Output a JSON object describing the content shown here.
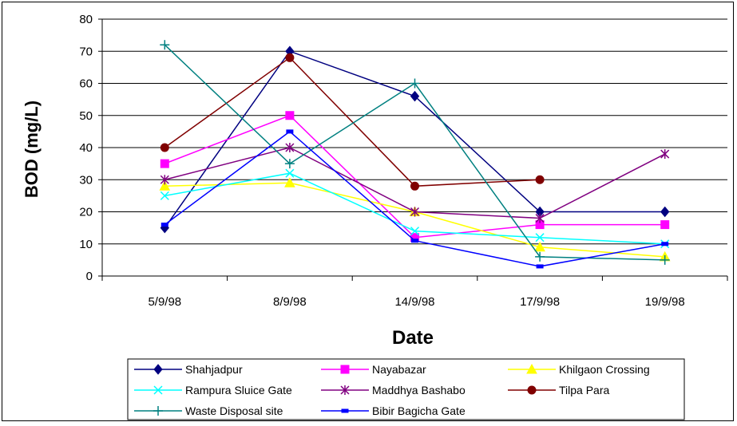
{
  "chart_data": {
    "type": "line",
    "title": "",
    "xlabel": "Date",
    "ylabel": "BOD (mg/L)",
    "categories": [
      "5/9/98",
      "8/9/98",
      "14/9/98",
      "17/9/98",
      "19/9/98"
    ],
    "ylim": [
      0,
      80
    ],
    "yticks": [
      "0",
      "10",
      "20",
      "30",
      "40",
      "50",
      "60",
      "70",
      "80"
    ],
    "grid": "horizontal",
    "legend_position": "bottom",
    "series": [
      {
        "name": "Shahjadpur",
        "values": [
          15,
          70,
          56,
          20,
          20
        ],
        "color": "#000080",
        "marker": "diamond"
      },
      {
        "name": "Nayabazar",
        "values": [
          35,
          50,
          12,
          16,
          16
        ],
        "color": "#FF00FF",
        "marker": "square"
      },
      {
        "name": "Khilgaon Crossing",
        "values": [
          28,
          29,
          20,
          9,
          6
        ],
        "color": "#FFFF00",
        "marker": "triangle"
      },
      {
        "name": "Rampura Sluice Gate",
        "values": [
          25,
          32,
          14,
          12,
          10
        ],
        "color": "#00FFFF",
        "marker": "x"
      },
      {
        "name": "Maddhya Bashabo",
        "values": [
          30,
          40,
          20,
          18,
          38
        ],
        "color": "#800080",
        "marker": "asterisk"
      },
      {
        "name": "Tilpa Para",
        "values": [
          40,
          68,
          28,
          30,
          null
        ],
        "color": "#800000",
        "marker": "circle"
      },
      {
        "name": "Waste Disposal site",
        "values": [
          72,
          35,
          60,
          6,
          5
        ],
        "color": "#008080",
        "marker": "plus"
      },
      {
        "name": "Bibir Bagicha Gate",
        "values": [
          16,
          45,
          11,
          3,
          10
        ],
        "color": "#0000FF",
        "marker": "dash"
      }
    ]
  }
}
